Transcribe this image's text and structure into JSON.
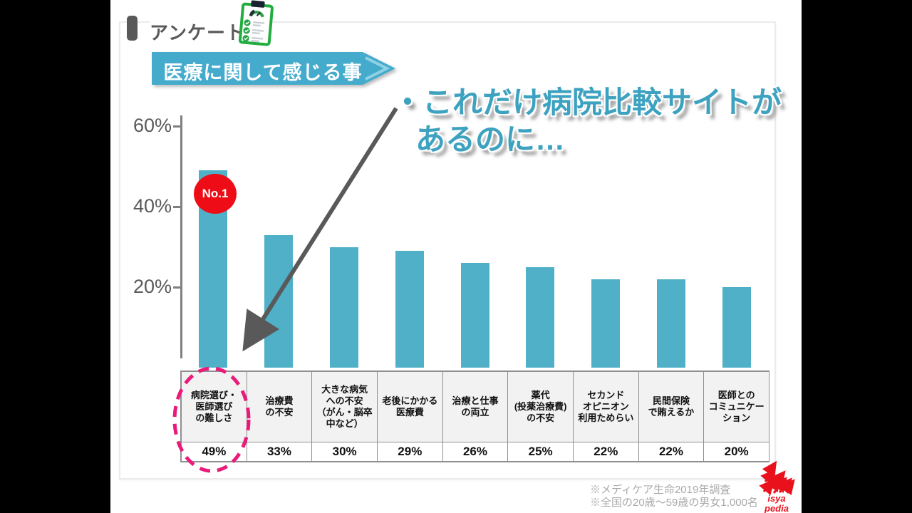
{
  "header": {
    "label": "アンケート",
    "icon": "clipboard-checklist-icon"
  },
  "banner": {
    "label": "医療に関して感じる事",
    "color": "#45abcc"
  },
  "headline": {
    "line1": "・これだけ病院比較サイトが",
    "line2": "あるのに…",
    "color": "#3da2c0"
  },
  "badge": {
    "label": "No.1",
    "color": "#ee0d16"
  },
  "chart_data": {
    "type": "bar",
    "title": "医療に関して感じる事",
    "categories": [
      "病院選び・\n医師選び\nの難しさ",
      "治療費\nの不安",
      "大きな病気\nへの不安\n（がん・脳卒\n中など）",
      "老後にかかる\n医療費",
      "治療と仕事\nの両立",
      "薬代\n(投薬治療費)\nの不安",
      "セカンド\nオピニオン\n利用ためらい",
      "民間保険\nで賄えるか",
      "医師との\nコミュニケー\nション"
    ],
    "values": [
      49,
      33,
      30,
      29,
      26,
      25,
      22,
      22,
      20
    ],
    "value_labels": [
      "49%",
      "33%",
      "30%",
      "29%",
      "26%",
      "25%",
      "22%",
      "22%",
      "20%"
    ],
    "yticks": [
      {
        "label": "60%",
        "value": 60
      },
      {
        "label": "40%",
        "value": 40
      },
      {
        "label": "20%",
        "value": 20
      }
    ],
    "ylim": [
      0,
      60
    ],
    "grid": false,
    "legend": false,
    "bar_color": "#4fb0c8",
    "highlight": {
      "index": 0,
      "annotation": "No.1",
      "annotation_color": "#ee0d16",
      "ellipse_color": "#ea1a7a"
    }
  },
  "footnotes": [
    "※メディケア生命2019年調査",
    "※全国の20歳～59歳の男女1,000名"
  ],
  "logo": {
    "line1": "isya",
    "line2": "pedia",
    "color": "#e8111c"
  }
}
